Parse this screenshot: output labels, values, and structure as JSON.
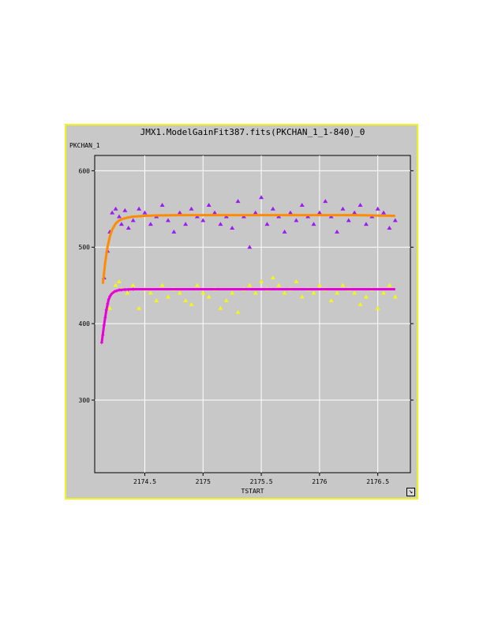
{
  "window": {
    "title": "JMX1.ModelGainFit387.fits(PKCHAN_1_1-840)_0",
    "resize_icon_glyph": "↘"
  },
  "colors": {
    "frame": "#f2f21c",
    "panel": "#c8c8c8",
    "grid": "#ffffff",
    "series_1": "#9b1cf0",
    "series_2": "#ff8c00",
    "series_3": "#f5f51a",
    "series_4": "#e800d8"
  },
  "chart_data": {
    "type": "scatter",
    "title": "JMX1.ModelGainFit387.fits(PKCHAN_1_1-840)_0",
    "xlabel": "TSTART",
    "ylabel": "PKCHAN_1",
    "xlim": [
      2174.07,
      2176.78
    ],
    "ylim": [
      205,
      620
    ],
    "grid": true,
    "legend": "none",
    "x_ticks": [
      2174.5,
      2175,
      2175.5,
      2176,
      2176.5
    ],
    "x_tick_labels": [
      "2174.5",
      "2175",
      "2175.5",
      "2176",
      "2176.5"
    ],
    "y_ticks": [
      300,
      400,
      500,
      600
    ],
    "y_tick_labels": [
      "300",
      "400",
      "500",
      "600"
    ],
    "series": [
      {
        "marker": "triangle",
        "color": "#9b1cf0",
        "x": [
          2174.15,
          2174.18,
          2174.2,
          2174.22,
          2174.25,
          2174.28,
          2174.3,
          2174.33,
          2174.36,
          2174.4,
          2174.45,
          2174.5,
          2174.55,
          2174.6,
          2174.65,
          2174.7,
          2174.75,
          2174.8,
          2174.85,
          2174.9,
          2174.95,
          2175.0,
          2175.05,
          2175.1,
          2175.15,
          2175.2,
          2175.25,
          2175.3,
          2175.35,
          2175.4,
          2175.45,
          2175.5,
          2175.55,
          2175.6,
          2175.65,
          2175.7,
          2175.75,
          2175.8,
          2175.85,
          2175.9,
          2175.95,
          2176.0,
          2176.05,
          2176.1,
          2176.15,
          2176.2,
          2176.25,
          2176.3,
          2176.35,
          2176.4,
          2176.45,
          2176.5,
          2176.55,
          2176.6,
          2176.65
        ],
        "y": [
          460,
          495,
          520,
          545,
          550,
          540,
          530,
          548,
          525,
          535,
          550,
          545,
          530,
          540,
          555,
          535,
          520,
          545,
          530,
          550,
          540,
          535,
          555,
          545,
          530,
          540,
          525,
          560,
          540,
          500,
          545,
          565,
          530,
          550,
          540,
          520,
          545,
          535,
          555,
          540,
          530,
          545,
          560,
          540,
          520,
          550,
          535,
          545,
          555,
          530,
          540,
          550,
          545,
          525,
          535
        ]
      },
      {
        "marker": "line",
        "color": "#ff8c00",
        "x": [
          2174.14,
          2174.16,
          2174.18,
          2174.2,
          2174.22,
          2174.25,
          2174.28,
          2174.32,
          2174.36,
          2174.4,
          2174.5,
          2174.6,
          2174.8,
          2175.0,
          2175.3,
          2175.6,
          2176.0,
          2176.3,
          2176.65
        ],
        "y": [
          452,
          480,
          500,
          514,
          523,
          531,
          535,
          537.5,
          539,
          540,
          541,
          541.5,
          542,
          542,
          542,
          542,
          542,
          542,
          541
        ]
      },
      {
        "marker": "triangle",
        "color": "#f5f51a",
        "x": [
          2174.2,
          2174.22,
          2174.25,
          2174.28,
          2174.3,
          2174.35,
          2174.4,
          2174.45,
          2174.5,
          2174.55,
          2174.6,
          2174.65,
          2174.7,
          2174.75,
          2174.8,
          2174.85,
          2174.9,
          2174.95,
          2175.0,
          2175.05,
          2175.1,
          2175.15,
          2175.2,
          2175.25,
          2175.3,
          2175.35,
          2175.4,
          2175.45,
          2175.5,
          2175.55,
          2175.6,
          2175.65,
          2175.7,
          2175.75,
          2175.8,
          2175.85,
          2175.9,
          2175.95,
          2176.0,
          2176.05,
          2176.1,
          2176.15,
          2176.2,
          2176.25,
          2176.3,
          2176.35,
          2176.4,
          2176.45,
          2176.5,
          2176.55,
          2176.6,
          2176.65
        ],
        "y": [
          420,
          440,
          450,
          455,
          445,
          440,
          450,
          420,
          445,
          440,
          430,
          450,
          435,
          445,
          440,
          430,
          425,
          450,
          440,
          435,
          445,
          420,
          430,
          440,
          415,
          445,
          450,
          440,
          455,
          445,
          460,
          450,
          440,
          445,
          455,
          435,
          445,
          440,
          450,
          445,
          430,
          440,
          450,
          445,
          440,
          425,
          435,
          445,
          420,
          440,
          450,
          435
        ]
      },
      {
        "marker": "cross",
        "color": "#e800d8",
        "x": [
          2174.13,
          2174.14,
          2174.15,
          2174.16,
          2174.17,
          2174.18,
          2174.19,
          2174.2,
          2174.22,
          2174.24,
          2174.26,
          2174.28,
          2174.3,
          2174.33,
          2174.36,
          2174.4
        ],
        "y": [
          375,
          385,
          398,
          408,
          418,
          426,
          432,
          436,
          440,
          442,
          443,
          444,
          444,
          444.5,
          444.5,
          445
        ]
      },
      {
        "marker": "line",
        "color": "#e800d8",
        "x": [
          2174.13,
          2174.15,
          2174.17,
          2174.19,
          2174.21,
          2174.24,
          2174.28,
          2174.32,
          2174.4,
          2174.5,
          2174.8,
          2175.2,
          2175.6,
          2176.0,
          2176.3,
          2176.65
        ],
        "y": [
          375,
          398,
          418,
          432,
          438,
          442,
          444,
          444.5,
          445,
          445,
          445,
          445,
          445,
          445,
          445,
          445
        ]
      }
    ]
  }
}
